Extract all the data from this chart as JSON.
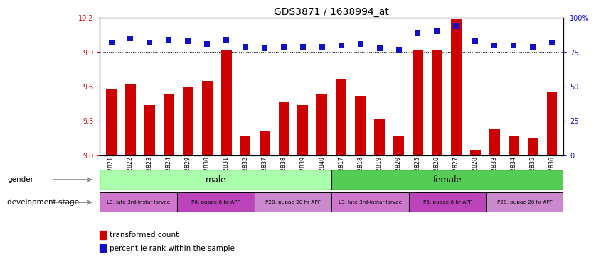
{
  "title": "GDS3871 / 1638994_at",
  "samples": [
    "GSM572821",
    "GSM572822",
    "GSM572823",
    "GSM572824",
    "GSM572829",
    "GSM572830",
    "GSM572831",
    "GSM572832",
    "GSM572837",
    "GSM572838",
    "GSM572839",
    "GSM572840",
    "GSM572817",
    "GSM572818",
    "GSM572819",
    "GSM572820",
    "GSM572825",
    "GSM572826",
    "GSM572827",
    "GSM572828",
    "GSM572833",
    "GSM572834",
    "GSM572835",
    "GSM572836"
  ],
  "transformed_count": [
    9.58,
    9.62,
    9.44,
    9.54,
    9.6,
    9.65,
    9.92,
    9.17,
    9.21,
    9.47,
    9.44,
    9.53,
    9.67,
    9.52,
    9.32,
    9.17,
    9.92,
    9.92,
    10.19,
    9.05,
    9.23,
    9.17,
    9.15,
    9.55
  ],
  "percentile_rank": [
    82,
    85,
    82,
    84,
    83,
    81,
    84,
    79,
    78,
    79,
    79,
    79,
    80,
    81,
    78,
    77,
    89,
    90,
    94,
    83,
    80,
    80,
    79,
    82
  ],
  "ylim_left": [
    9.0,
    10.2
  ],
  "ylim_right": [
    0,
    100
  ],
  "yticks_left": [
    9.0,
    9.3,
    9.6,
    9.9,
    10.2
  ],
  "yticks_right": [
    0,
    25,
    50,
    75,
    100
  ],
  "ytick_labels_right": [
    "0",
    "25",
    "50",
    "75",
    "100%"
  ],
  "bar_color": "#cc0000",
  "dot_color": "#1111cc",
  "male_color": "#aaffaa",
  "female_color": "#55cc55",
  "dev_stage_colors": [
    "#cc77cc",
    "#bb44bb",
    "#cc88cc",
    "#cc77cc",
    "#bb44bb",
    "#cc88cc"
  ],
  "dev_stage_labels": [
    "L3, late 3rd-instar larvae",
    "P6, pupae 6 hr APF",
    "P20, pupae 20 hr APF",
    "L3, late 3rd-instar larvae",
    "P6, pupae 6 hr APF",
    "P20, pupae 20 hr APF"
  ],
  "dev_stage_counts": [
    4,
    4,
    4,
    4,
    4,
    4
  ],
  "background_color": "#ffffff",
  "bar_width": 0.55,
  "dot_size": 35,
  "title_fontsize": 10,
  "tick_fontsize": 7,
  "xlabel_fontsize": 6
}
